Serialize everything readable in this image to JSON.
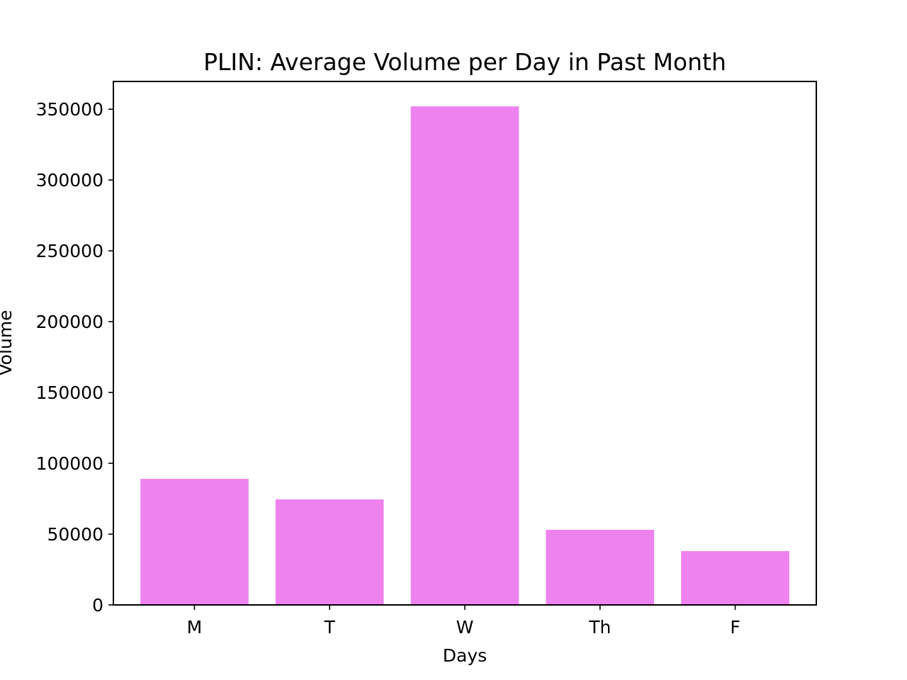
{
  "chart_data": {
    "type": "bar",
    "title": "PLIN: Average Volume per Day in Past Month",
    "xlabel": "Days",
    "ylabel": "Volume",
    "categories": [
      "M",
      "T",
      "W",
      "Th",
      "F"
    ],
    "values": [
      89000,
      74500,
      352000,
      53000,
      38000
    ],
    "ylim": [
      0,
      369600
    ],
    "yticks": [
      0,
      50000,
      100000,
      150000,
      200000,
      250000,
      300000,
      350000
    ],
    "ytick_labels": [
      "0",
      "50000",
      "100000",
      "150000",
      "200000",
      "250000",
      "300000",
      "350000"
    ],
    "bar_color": "#ee82ee",
    "grid": false,
    "legend": false
  }
}
